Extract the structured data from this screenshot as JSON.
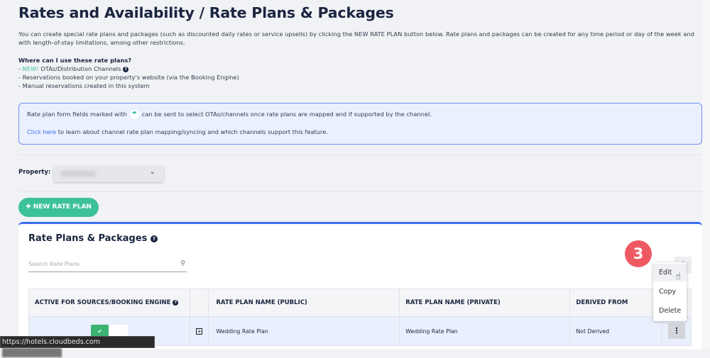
{
  "header": {
    "title": "Rates and Availability / Rate Plans & Packages"
  },
  "intro": {
    "text": "You can create special rate plans and packages (such as discounted daily rates or service upsells) by clicking the NEW RATE PLAN button below. Rate plans and packages can be created for any time period or day of the week and with length-of-stay limitations, among other restrictions."
  },
  "where": {
    "heading": "Where can I use these rate plans?",
    "new_tag": "NEW!",
    "items": [
      "OTAs/Distribution Channels",
      "Reservations booked on your property's website (via the Booking Engine)",
      "Manual reservations created in this system"
    ],
    "prefix": "- "
  },
  "info": {
    "line1_a": "Rate plan form fields marked with",
    "line1_b": "can be sent to select OTAs/channels once rate plans are mapped and if supported by the channel.",
    "link": "Click here",
    "line2": " to learn about channel rate plan mapping/syncing and which channels support this feature."
  },
  "property": {
    "label": "Property:"
  },
  "new_rate_plan": {
    "label": "NEW RATE PLAN"
  },
  "card": {
    "title": "Rate Plans & Packages",
    "search_placeholder": "Search Rate Plans"
  },
  "badge": {
    "step": "3"
  },
  "menu": {
    "items": [
      "Edit",
      "Copy",
      "Delete"
    ]
  },
  "table": {
    "headers": [
      "ACTIVE FOR SOURCES/BOOKING ENGINE",
      "",
      "RATE PLAN NAME (PUBLIC)",
      "RATE PLAN NAME (PRIVATE)",
      "DERIVED FROM",
      ""
    ],
    "rows": [
      {
        "active": true,
        "public": "Wedding Rate Plan",
        "private": "Wedding Rate Plan",
        "derived": "Not Derived"
      }
    ]
  },
  "status_bar": {
    "url": "https://hotels.cloudbeds.com"
  },
  "colors": {
    "accent": "#3cc19b",
    "primary": "#3d6ef5",
    "badge": "#ef5a62"
  }
}
